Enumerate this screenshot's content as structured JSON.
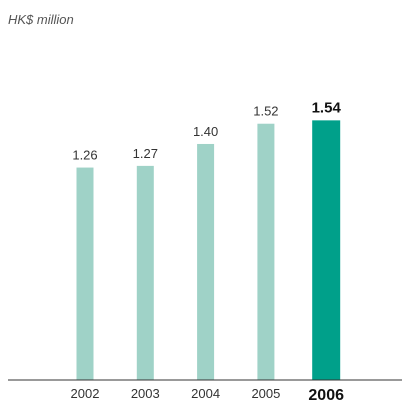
{
  "chart_data": {
    "type": "bar",
    "unit_label": "HK$ million",
    "categories": [
      "2002",
      "2003",
      "2004",
      "2005",
      "2006"
    ],
    "values": [
      1.26,
      1.27,
      1.4,
      1.52,
      1.54
    ],
    "value_labels": [
      "1.26",
      "1.27",
      "1.40",
      "1.52",
      "1.54"
    ],
    "highlight_category": "2006",
    "title": "",
    "xlabel": "",
    "ylabel": "",
    "ylim": [
      0,
      1.8
    ],
    "grid": false,
    "colors": {
      "bar": "#9fd2c7",
      "highlight": "#00a08a",
      "axis": "#333333"
    }
  }
}
